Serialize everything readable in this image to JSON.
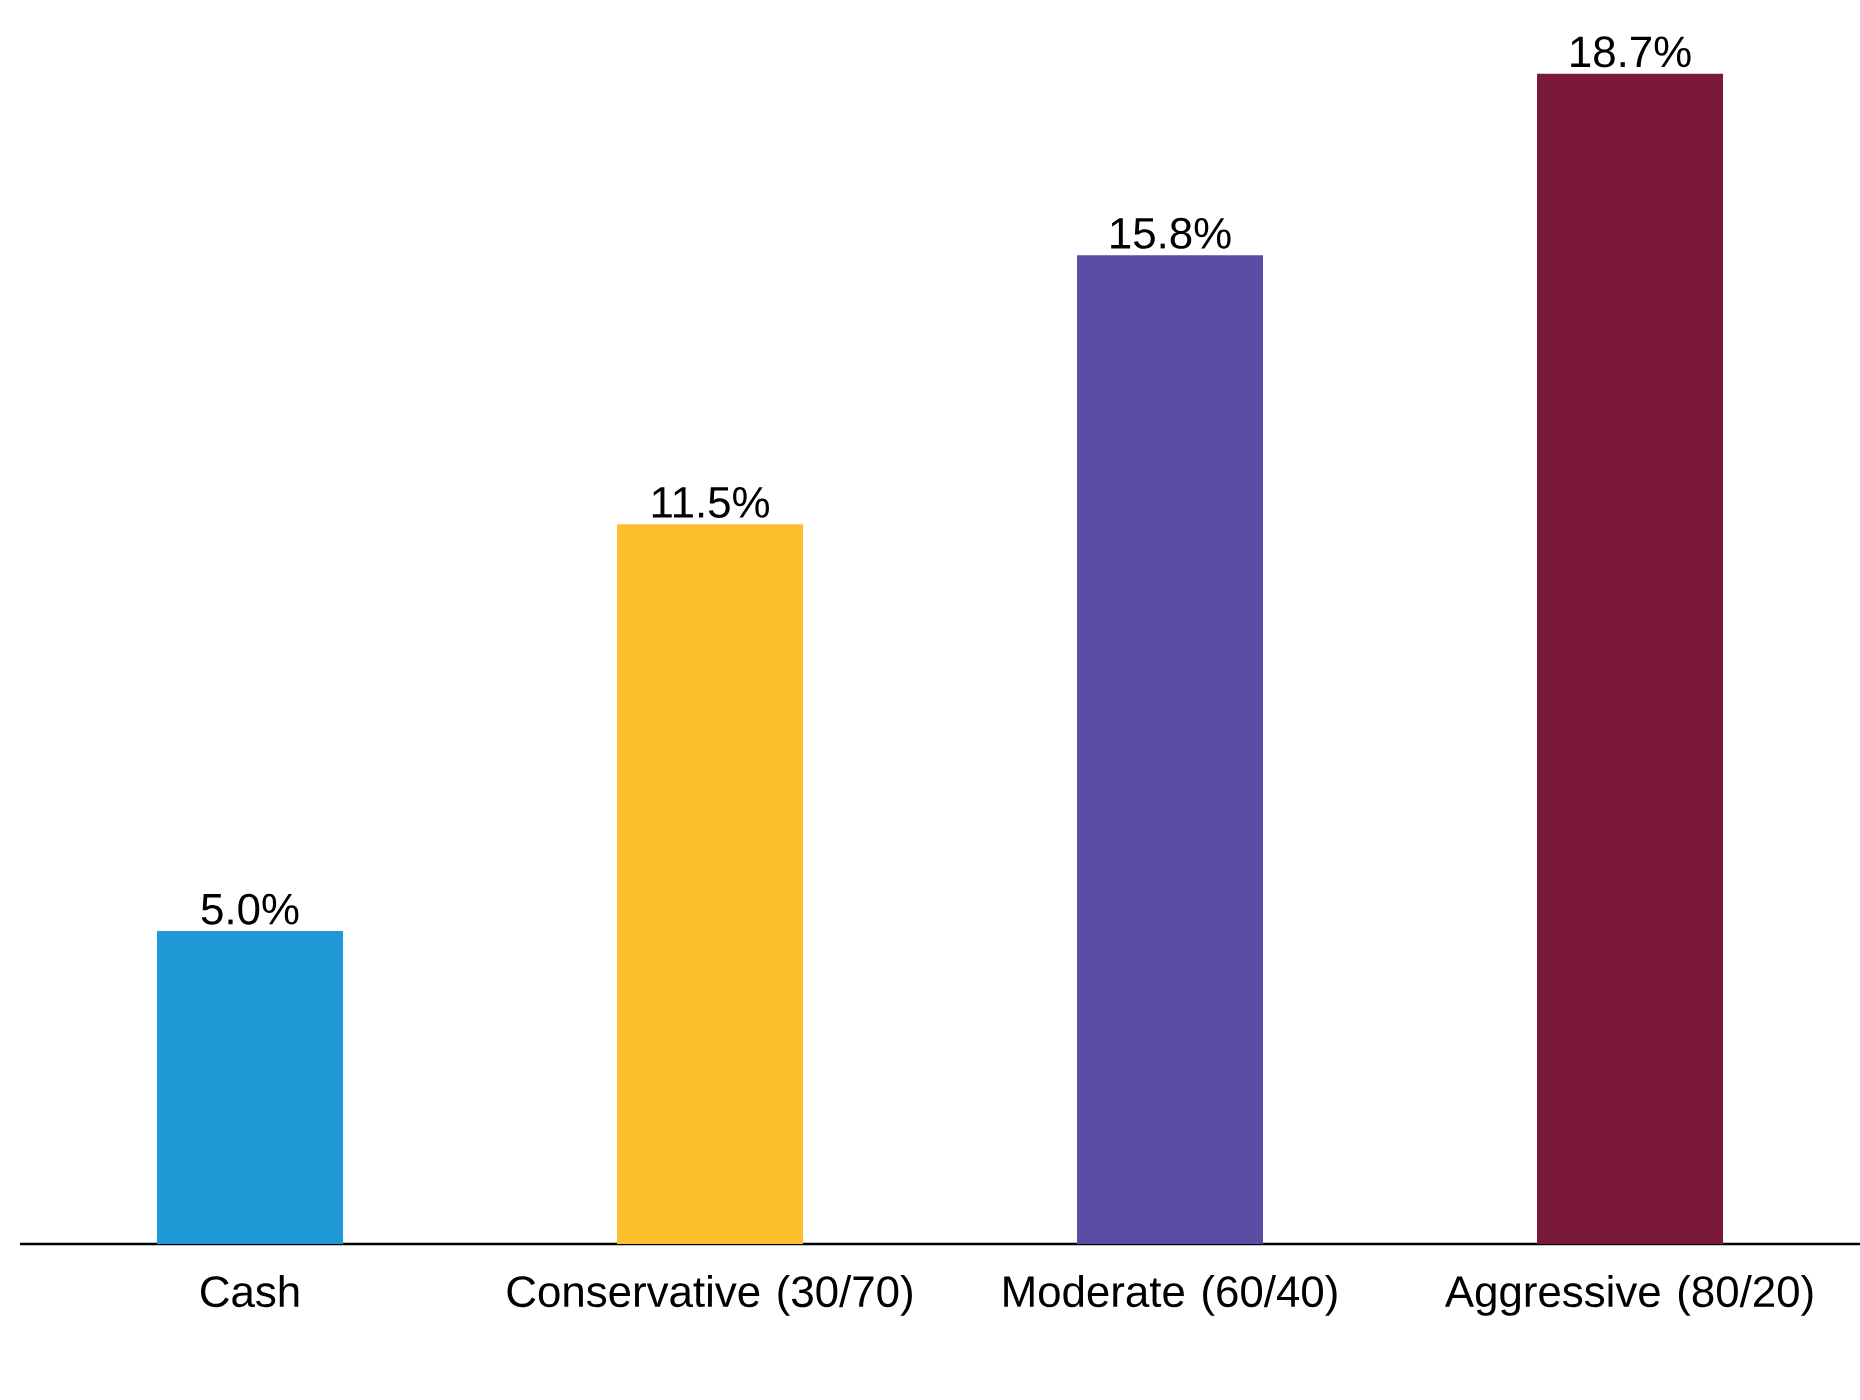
{
  "chart_data": {
    "type": "bar",
    "categories": [
      "Cash",
      "Conservative (30/70)",
      "Moderate (60/40)",
      "Aggressive (80/20)"
    ],
    "values": [
      5.0,
      11.5,
      15.8,
      18.7
    ],
    "value_labels": [
      "5.0%",
      "11.5%",
      "15.8%",
      "18.7%"
    ],
    "colors": [
      "#1f9ad6",
      "#fdbf2d",
      "#5a4ba3",
      "#7b1a38"
    ]
  }
}
